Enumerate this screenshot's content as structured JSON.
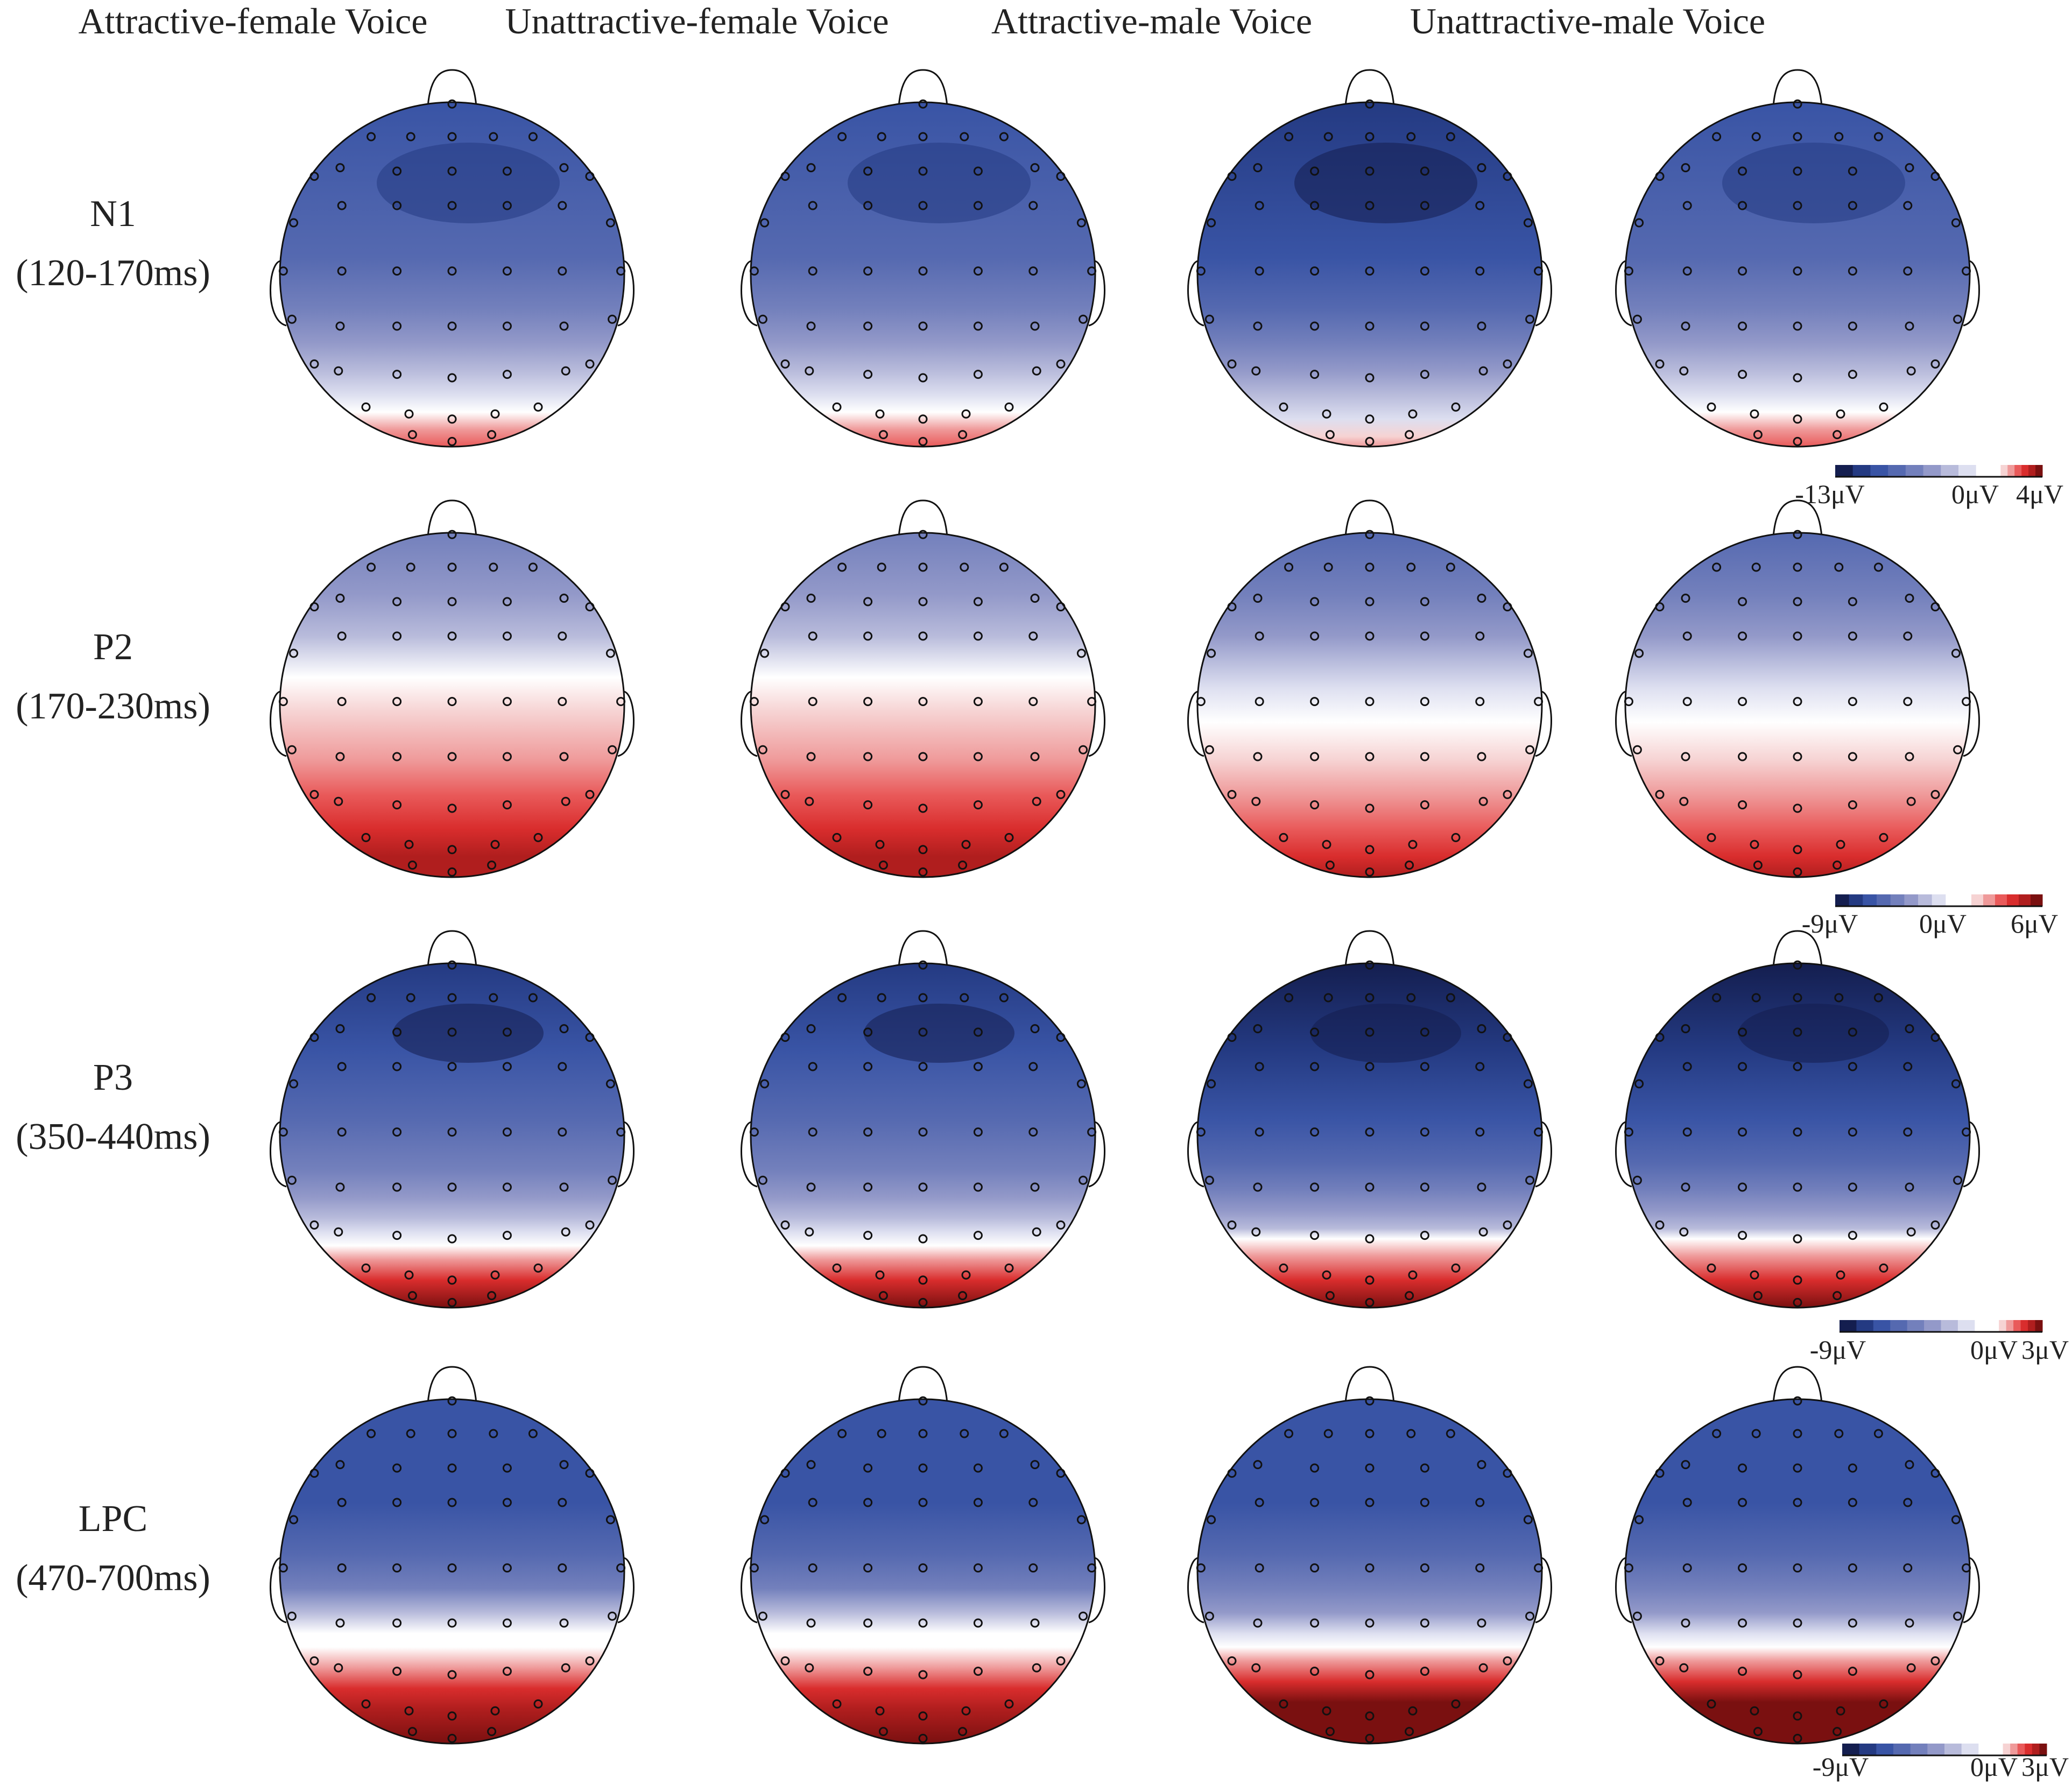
{
  "figure": {
    "columns": [
      {
        "label": "Attractive-female Voice"
      },
      {
        "label": "Unattractive-female Voice"
      },
      {
        "label": "Attractive-male Voice"
      },
      {
        "label": "Unattractive-male Voice"
      }
    ],
    "rows": [
      {
        "component": "N1",
        "window": "(120-170ms)",
        "colorbar": {
          "min_label": "-13μV",
          "zero_label": "0μV",
          "max_label": "4μV",
          "min": -13,
          "max": 4
        }
      },
      {
        "component": "P2",
        "window": "(170-230ms)",
        "colorbar": {
          "min_label": "-9μV",
          "zero_label": "0μV",
          "max_label": "6μV",
          "min": -9,
          "max": 6
        }
      },
      {
        "component": "P3",
        "window": "(350-440ms)",
        "colorbar": {
          "min_label": "-9μV",
          "zero_label": "0μV",
          "max_label": "3μV",
          "min": -9,
          "max": 3
        }
      },
      {
        "component": "LPC",
        "window": "(470-700ms)",
        "colorbar": {
          "min_label": "-9μV",
          "zero_label": "0μV",
          "max_label": "3μV",
          "min": -9,
          "max": 3
        }
      }
    ],
    "colormap": [
      "#141e4f",
      "#243a82",
      "#3954a5",
      "#5569b0",
      "#7380bc",
      "#9399c9",
      "#b8bbdb",
      "#dddff0",
      "#ffffff",
      "#f6d3d3",
      "#ef9a9a",
      "#e95a5a",
      "#d92d2d",
      "#b01e1e",
      "#7a1010"
    ]
  }
}
